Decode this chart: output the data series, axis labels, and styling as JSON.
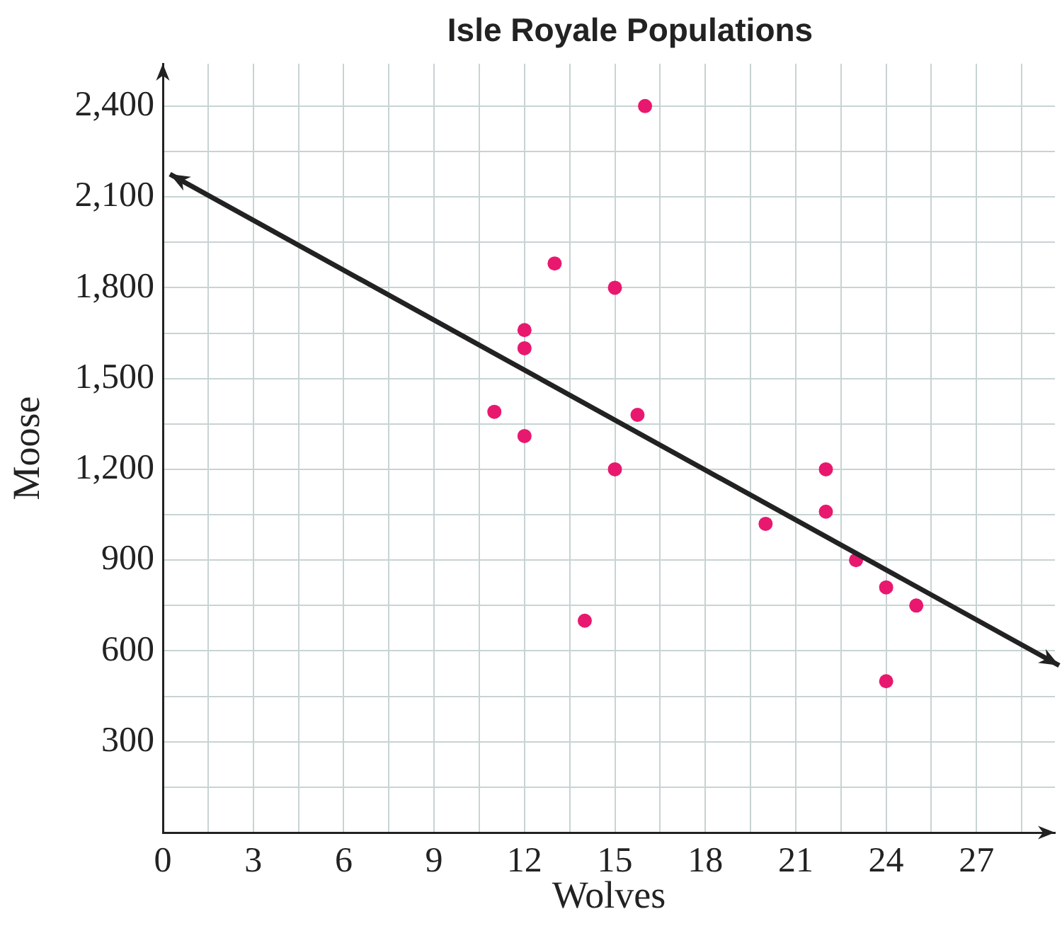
{
  "chart_data": {
    "type": "scatter",
    "title": "Isle Royale Populations",
    "xlabel": "Wolves",
    "ylabel": "Moose",
    "xlim": [
      0,
      29.6
    ],
    "ylim": [
      0,
      2540
    ],
    "xticks": [
      0,
      {
        "value": 1.5,
        "label": null
      },
      3,
      {
        "value": 4.5,
        "label": null
      },
      6,
      {
        "value": 7.5,
        "label": null
      },
      9,
      {
        "value": 10.5,
        "label": null
      },
      12,
      {
        "value": 13.5,
        "label": null
      },
      15,
      {
        "value": 16.5,
        "label": null
      },
      18,
      {
        "value": 19.5,
        "label": null
      },
      21,
      {
        "value": 22.5,
        "label": null
      },
      24,
      {
        "value": 25.5,
        "label": null
      },
      27,
      {
        "value": 28.5,
        "label": null
      }
    ],
    "yticks": [
      {
        "value": 0,
        "label": null
      },
      {
        "value": 150,
        "label": null
      },
      300,
      {
        "value": 450,
        "label": null
      },
      600,
      {
        "value": 750,
        "label": null
      },
      900,
      {
        "value": 1050,
        "label": null
      },
      {
        "value": 1200,
        "label": "1,200"
      },
      {
        "value": 1350,
        "label": null
      },
      {
        "value": 1500,
        "label": "1,500"
      },
      {
        "value": 1650,
        "label": null
      },
      {
        "value": 1800,
        "label": "1,800"
      },
      {
        "value": 1950,
        "label": null
      },
      {
        "value": 2100,
        "label": "2,100"
      },
      {
        "value": 2250,
        "label": null
      },
      {
        "value": 2400,
        "label": "2,400"
      }
    ],
    "grid": true,
    "marker": "circle",
    "series": [
      {
        "type": "scatter",
        "color": "#e8186f",
        "x": [
          16,
          13,
          15,
          12,
          12,
          11,
          12,
          15.75,
          15,
          14,
          20,
          22,
          22,
          23,
          24,
          25,
          24
        ],
        "values": [
          2400,
          1880,
          1800,
          1660,
          1600,
          1390,
          1310,
          1380,
          1200,
          700,
          1020,
          1200,
          1060,
          900,
          810,
          750,
          500
        ]
      }
    ]
  }
}
